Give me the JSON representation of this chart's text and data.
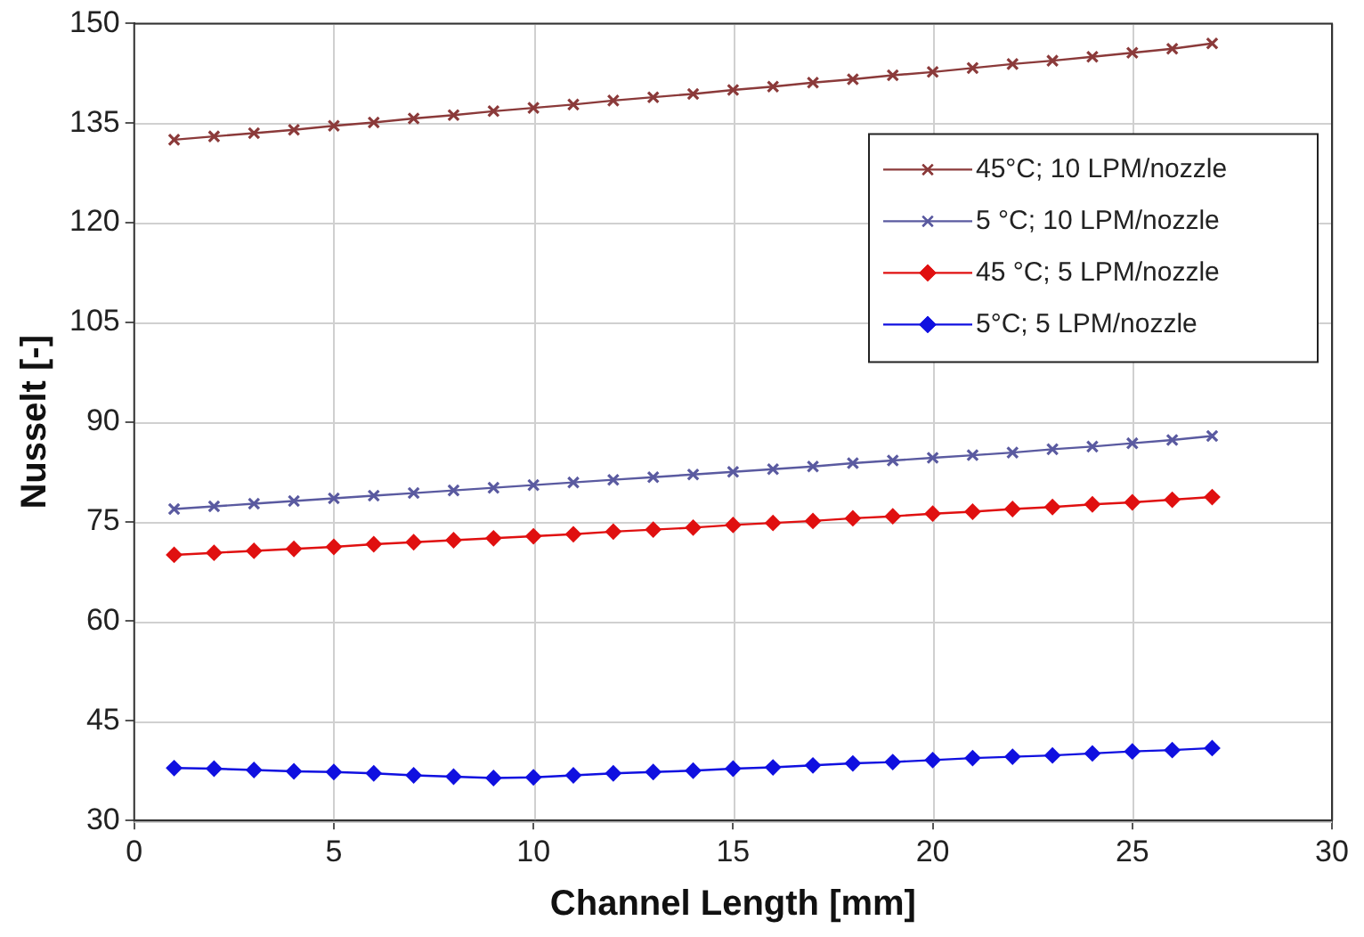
{
  "chart_data": {
    "type": "line",
    "xlabel": "Channel Length [mm]",
    "ylabel": "Nusselt [-]",
    "x": [
      1,
      2,
      3,
      4,
      5,
      6,
      7,
      8,
      9,
      10,
      11,
      12,
      13,
      14,
      15,
      16,
      17,
      18,
      19,
      20,
      21,
      22,
      23,
      24,
      25,
      26,
      27
    ],
    "xlim": [
      0,
      30
    ],
    "xticks": [
      0,
      5,
      10,
      15,
      20,
      25,
      30
    ],
    "ylim": [
      30,
      150
    ],
    "yticks": [
      30,
      45,
      60,
      75,
      90,
      105,
      120,
      135,
      150
    ],
    "grid": true,
    "legend": "top right",
    "line_style": "solid",
    "series": [
      {
        "name": "45°C; 10 LPM/nozzle",
        "color": "#8b3a3a",
        "marker": "cross",
        "values": [
          132.5,
          133.0,
          133.5,
          134.0,
          134.6,
          135.1,
          135.7,
          136.2,
          136.8,
          137.3,
          137.8,
          138.4,
          138.9,
          139.4,
          140.0,
          140.5,
          141.1,
          141.6,
          142.2,
          142.7,
          143.3,
          143.9,
          144.4,
          145.0,
          145.6,
          146.2,
          147.0
        ]
      },
      {
        "name": "5 °C; 10 LPM/nozzle",
        "color": "#5a5aa0",
        "marker": "cross",
        "values": [
          76.9,
          77.3,
          77.7,
          78.1,
          78.5,
          78.9,
          79.3,
          79.7,
          80.1,
          80.5,
          80.9,
          81.3,
          81.7,
          82.1,
          82.5,
          82.9,
          83.3,
          83.8,
          84.2,
          84.6,
          85.0,
          85.4,
          85.9,
          86.3,
          86.8,
          87.3,
          87.9
        ]
      },
      {
        "name": "45 °C; 5 LPM/nozzle",
        "color": "#e01010",
        "marker": "diamond",
        "values": [
          70.0,
          70.3,
          70.6,
          70.9,
          71.2,
          71.6,
          71.9,
          72.2,
          72.5,
          72.8,
          73.1,
          73.5,
          73.8,
          74.1,
          74.5,
          74.8,
          75.1,
          75.5,
          75.8,
          76.2,
          76.5,
          76.9,
          77.2,
          77.6,
          77.9,
          78.3,
          78.7
        ]
      },
      {
        "name": "5°C; 5 LPM/nozzle",
        "color": "#1010e0",
        "marker": "diamond",
        "values": [
          37.9,
          37.8,
          37.6,
          37.4,
          37.3,
          37.1,
          36.8,
          36.6,
          36.4,
          36.5,
          36.8,
          37.1,
          37.3,
          37.5,
          37.8,
          38.0,
          38.3,
          38.6,
          38.8,
          39.1,
          39.4,
          39.6,
          39.8,
          40.1,
          40.4,
          40.6,
          40.9
        ]
      }
    ]
  }
}
